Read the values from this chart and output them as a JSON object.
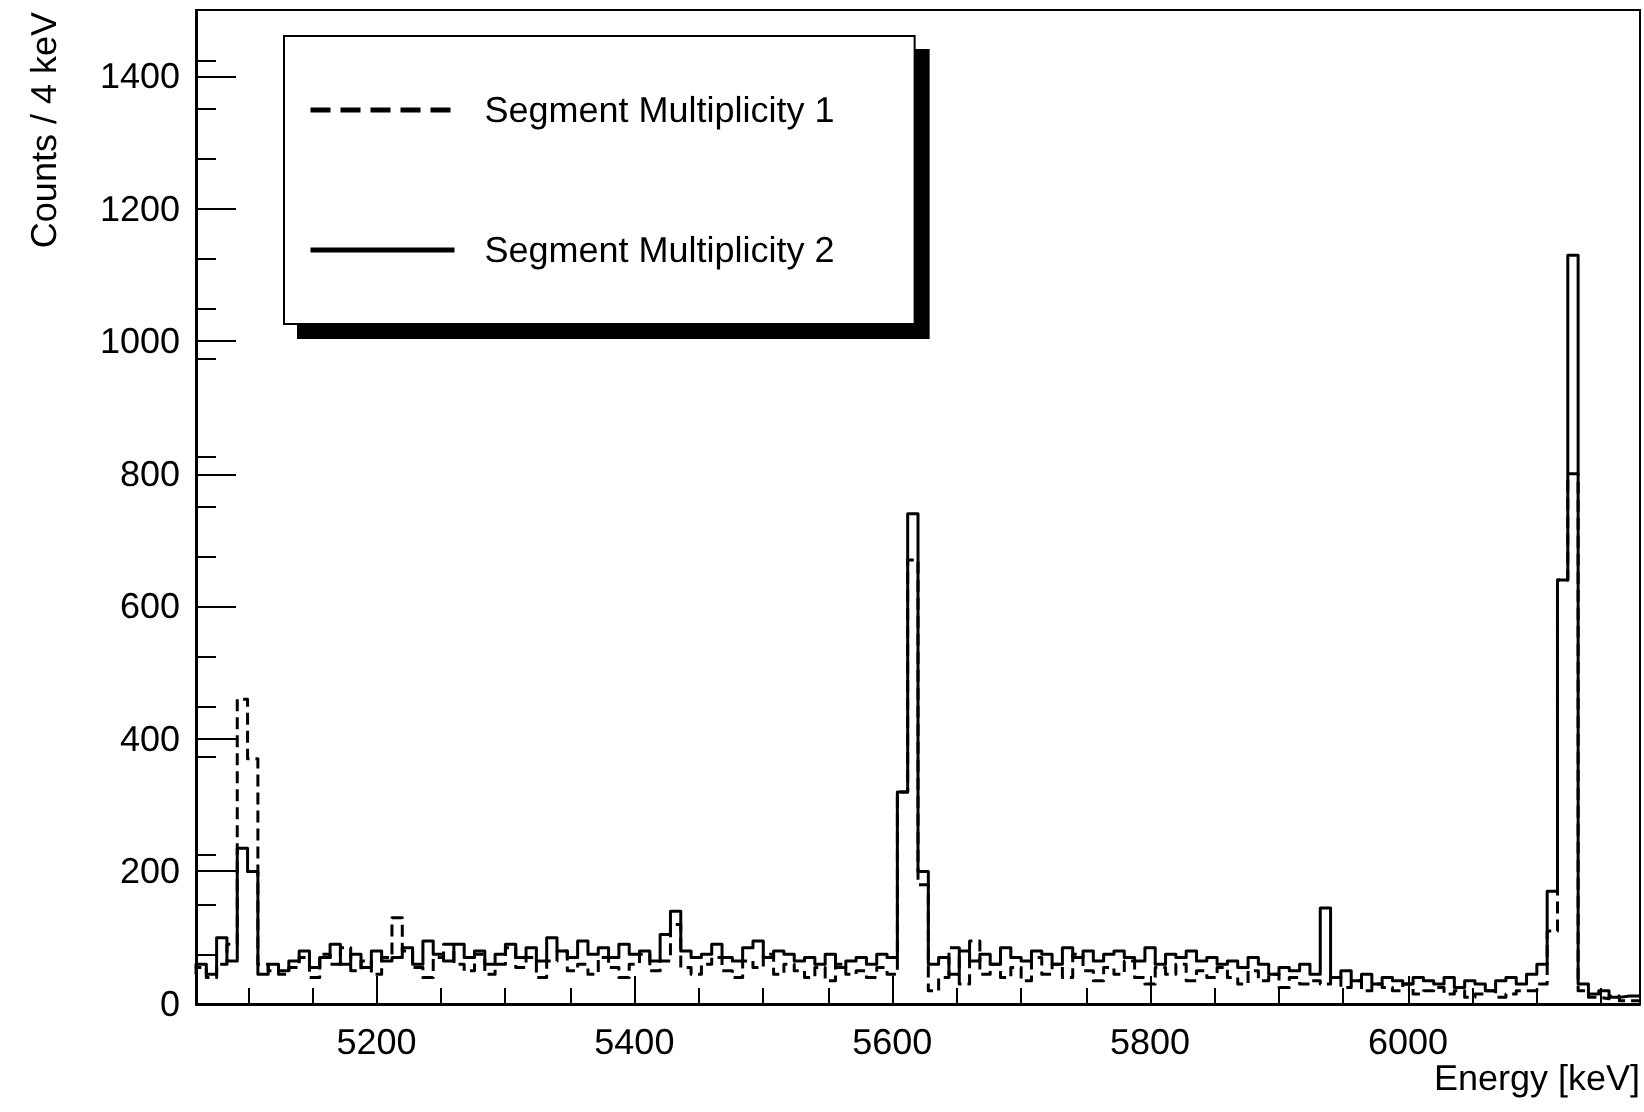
{
  "chart_data": {
    "type": "step",
    "xlabel": "Energy [keV]",
    "ylabel": "Counts / 4 keV",
    "x": [
      5060,
      5068,
      5076,
      5084,
      5092,
      5100,
      5108,
      5116,
      5124,
      5132,
      5140,
      5148,
      5156,
      5164,
      5172,
      5180,
      5188,
      5196,
      5204,
      5212,
      5220,
      5228,
      5236,
      5244,
      5252,
      5260,
      5268,
      5276,
      5284,
      5292,
      5300,
      5308,
      5316,
      5324,
      5332,
      5340,
      5348,
      5356,
      5364,
      5372,
      5380,
      5388,
      5396,
      5404,
      5412,
      5420,
      5428,
      5436,
      5444,
      5452,
      5460,
      5468,
      5476,
      5484,
      5492,
      5500,
      5508,
      5516,
      5524,
      5532,
      5540,
      5548,
      5556,
      5564,
      5572,
      5580,
      5588,
      5596,
      5604,
      5612,
      5620,
      5628,
      5636,
      5644,
      5652,
      5660,
      5668,
      5676,
      5684,
      5692,
      5700,
      5708,
      5716,
      5724,
      5732,
      5740,
      5748,
      5756,
      5764,
      5772,
      5780,
      5788,
      5796,
      5804,
      5812,
      5820,
      5828,
      5836,
      5844,
      5852,
      5860,
      5868,
      5876,
      5884,
      5892,
      5900,
      5908,
      5916,
      5924,
      5932,
      5940,
      5948,
      5956,
      5964,
      5972,
      5980,
      5988,
      5996,
      6004,
      6012,
      6020,
      6028,
      6036,
      6044,
      6052,
      6060,
      6068,
      6076,
      6084,
      6092,
      6100,
      6108,
      6116,
      6124,
      6132,
      6140,
      6148,
      6156,
      6164,
      6172,
      6180
    ],
    "series": [
      {
        "name": "Segment Multiplicity 1",
        "color": "#000000",
        "line_style": "dashed",
        "values": [
          45,
          55,
          40,
          60,
          90,
          460,
          370,
          60,
          50,
          45,
          55,
          70,
          40,
          75,
          60,
          85,
          50,
          65,
          45,
          70,
          130,
          80,
          55,
          40,
          70,
          90,
          60,
          50,
          75,
          45,
          60,
          85,
          55,
          70,
          40,
          65,
          80,
          50,
          60,
          45,
          70,
          55,
          40,
          60,
          75,
          50,
          65,
          120,
          55,
          45,
          60,
          70,
          50,
          40,
          65,
          55,
          75,
          45,
          60,
          50,
          40,
          55,
          35,
          60,
          45,
          50,
          40,
          55,
          45,
          320,
          670,
          180,
          20,
          40,
          85,
          30,
          95,
          45,
          60,
          40,
          55,
          35,
          70,
          45,
          60,
          40,
          75,
          50,
          35,
          55,
          45,
          65,
          40,
          30,
          55,
          45,
          60,
          35,
          50,
          40,
          55,
          40,
          30,
          50,
          35,
          45,
          25,
          40,
          30,
          35,
          30,
          40,
          25,
          35,
          20,
          30,
          25,
          20,
          30,
          15,
          20,
          25,
          15,
          20,
          10,
          15,
          20,
          10,
          15,
          20,
          20,
          30,
          110,
          640,
          800,
          20,
          10,
          8,
          12,
          5,
          5
        ]
      },
      {
        "name": "Segment Multiplicity 2",
        "color": "#000000",
        "line_style": "solid",
        "values": [
          55,
          60,
          45,
          100,
          65,
          235,
          200,
          45,
          60,
          50,
          65,
          80,
          55,
          70,
          90,
          60,
          75,
          55,
          80,
          65,
          70,
          85,
          60,
          95,
          75,
          65,
          90,
          70,
          80,
          60,
          75,
          90,
          70,
          85,
          65,
          100,
          80,
          70,
          95,
          75,
          85,
          70,
          90,
          75,
          80,
          65,
          105,
          140,
          80,
          70,
          75,
          90,
          70,
          65,
          85,
          95,
          70,
          80,
          75,
          65,
          70,
          60,
          75,
          55,
          65,
          70,
          60,
          75,
          70,
          320,
          740,
          200,
          60,
          70,
          45,
          80,
          65,
          75,
          60,
          85,
          70,
          65,
          80,
          75,
          60,
          85,
          70,
          80,
          65,
          75,
          80,
          70,
          65,
          85,
          60,
          75,
          70,
          80,
          65,
          70,
          60,
          65,
          55,
          70,
          60,
          45,
          55,
          50,
          60,
          45,
          145,
          40,
          50,
          35,
          45,
          30,
          40,
          35,
          30,
          40,
          35,
          30,
          40,
          25,
          35,
          30,
          20,
          35,
          40,
          30,
          45,
          60,
          170,
          640,
          1130,
          30,
          15,
          20,
          10,
          12,
          12
        ]
      }
    ],
    "xlim": [
      5060,
      6180
    ],
    "xticks": [
      5200,
      5400,
      5600,
      5800,
      6000
    ],
    "ylim": [
      0,
      1500
    ],
    "yticks": [
      0,
      200,
      400,
      600,
      800,
      1000,
      1200,
      1400
    ],
    "grid": false,
    "legend": "top left"
  }
}
